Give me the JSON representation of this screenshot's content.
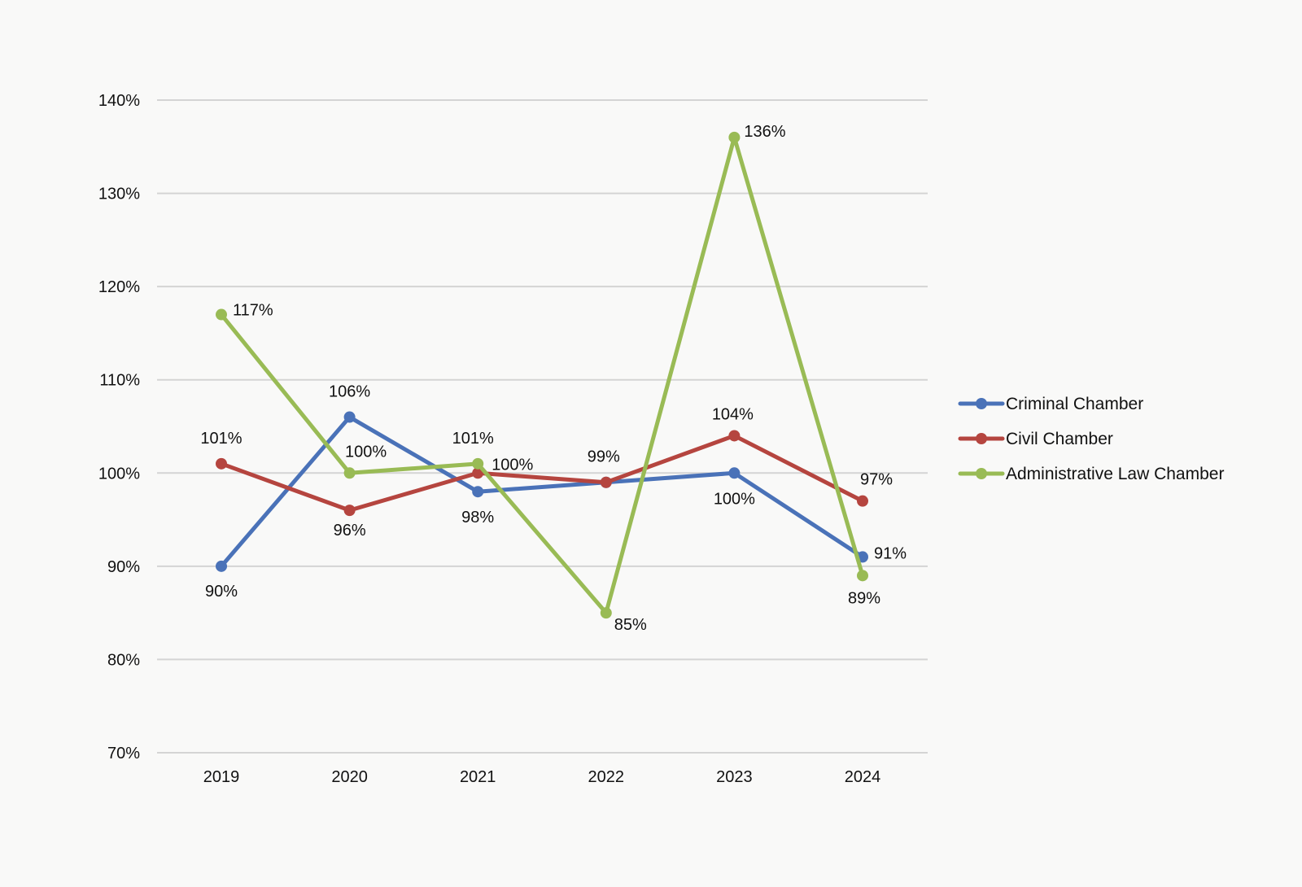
{
  "chart_data": {
    "type": "line",
    "title": "",
    "xlabel": "",
    "ylabel": "",
    "categories": [
      "2019",
      "2020",
      "2021",
      "2022",
      "2023",
      "2024"
    ],
    "ylim": [
      70,
      140
    ],
    "yticks": [
      70,
      80,
      90,
      100,
      110,
      120,
      130,
      140
    ],
    "y_tick_format": "percent",
    "grid": "horizontal",
    "legend_position": "right",
    "series": [
      {
        "name": "Criminal Chamber",
        "color": "#4a72b8",
        "values": [
          90,
          106,
          98,
          99,
          100,
          91
        ],
        "labels": [
          "90%",
          "106%",
          "98%",
          "",
          "100%",
          "91%"
        ]
      },
      {
        "name": "Civil Chamber",
        "color": "#b5453f",
        "values": [
          101,
          96,
          100,
          99,
          104,
          97
        ],
        "labels": [
          "101%",
          "96%",
          "100%",
          "99%",
          "104%",
          "97%"
        ]
      },
      {
        "name": "Administrative Law Chamber",
        "color": "#99bb55",
        "values": [
          117,
          100,
          101,
          85,
          136,
          89
        ],
        "labels": [
          "117%",
          "100%",
          "101%",
          "85%",
          "136%",
          "89%"
        ]
      }
    ]
  }
}
